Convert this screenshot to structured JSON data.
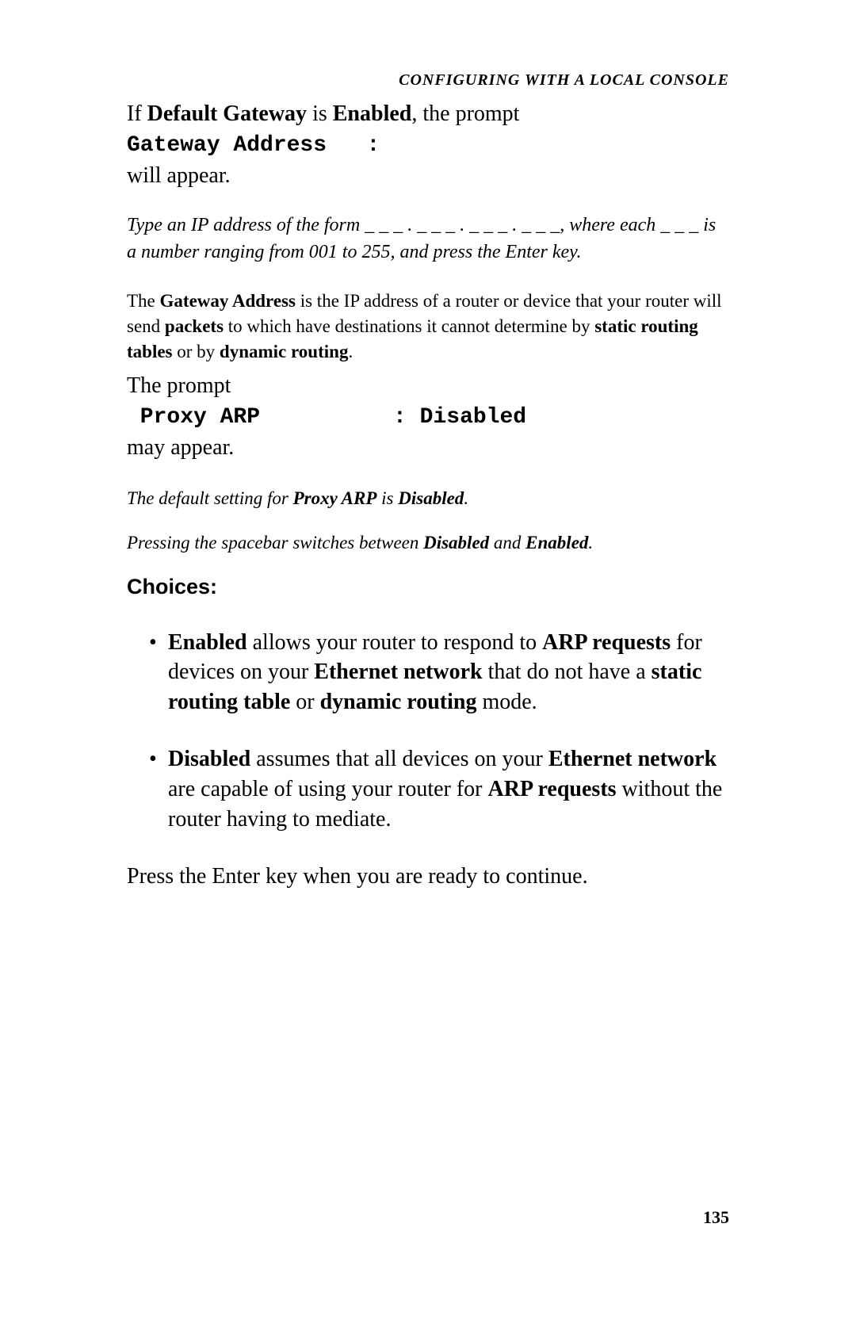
{
  "header": "CONFIGURING WITH A LOCAL CONSOLE",
  "p1_pre": "If  ",
  "p1_b1": "Default Gateway",
  "p1_mid": " is ",
  "p1_b2": "Enabled",
  "p1_post": ", the prompt",
  "p1_mono": "Gateway Address   :",
  "p1_after": "will appear.",
  "note1": "Type an IP address of the form _ _ _ . _ _ _ . _ _ _ . _ _ _, where each _ _ _ is a number ranging from 001 to 255, and press the Enter key.",
  "small_pre": "The ",
  "small_b1": "Gateway Address",
  "small_mid1": " is the IP address of a router or device that your router will send ",
  "small_b2": "packets",
  "small_mid2": " to which have destinations it cannot determine by ",
  "small_b3": "static routing tables",
  "small_mid3": " or by ",
  "small_b4": "dynamic routing",
  "small_post": ".",
  "prompt_pre": "The prompt",
  "prompt_mono": " Proxy ARP          : Disabled",
  "prompt_after": "may appear.",
  "note2_pre": "The default setting for ",
  "note2_b1": "Proxy ARP",
  "note2_mid": " is ",
  "note2_b2": "Disabled",
  "note2_post": ".",
  "note3_pre": "Pressing the spacebar switches between ",
  "note3_b1": "Disabled",
  "note3_mid": " and ",
  "note3_b2": "Enabled",
  "note3_post": ".",
  "choices_heading": "Choices:",
  "li1_b1": "Enabled",
  "li1_t1": " allows your router to respond to ",
  "li1_b2": "ARP requests",
  "li1_t2": " for devices on your ",
  "li1_b3": "Ethernet network",
  "li1_t3": " that do not have a ",
  "li1_b4": "static routing table",
  "li1_t4": " or ",
  "li1_b5": "dynamic routing",
  "li1_t5": " mode.",
  "li2_b1": "Disabled",
  "li2_t1": " assumes that all devices on your ",
  "li2_b2": "Ethernet network",
  "li2_t2": " are capable of using your router for ",
  "li2_b3": "ARP requests",
  "li2_t3": " without the router having to mediate.",
  "final": "Press the Enter key when you are ready to continue.",
  "page_number": "135"
}
